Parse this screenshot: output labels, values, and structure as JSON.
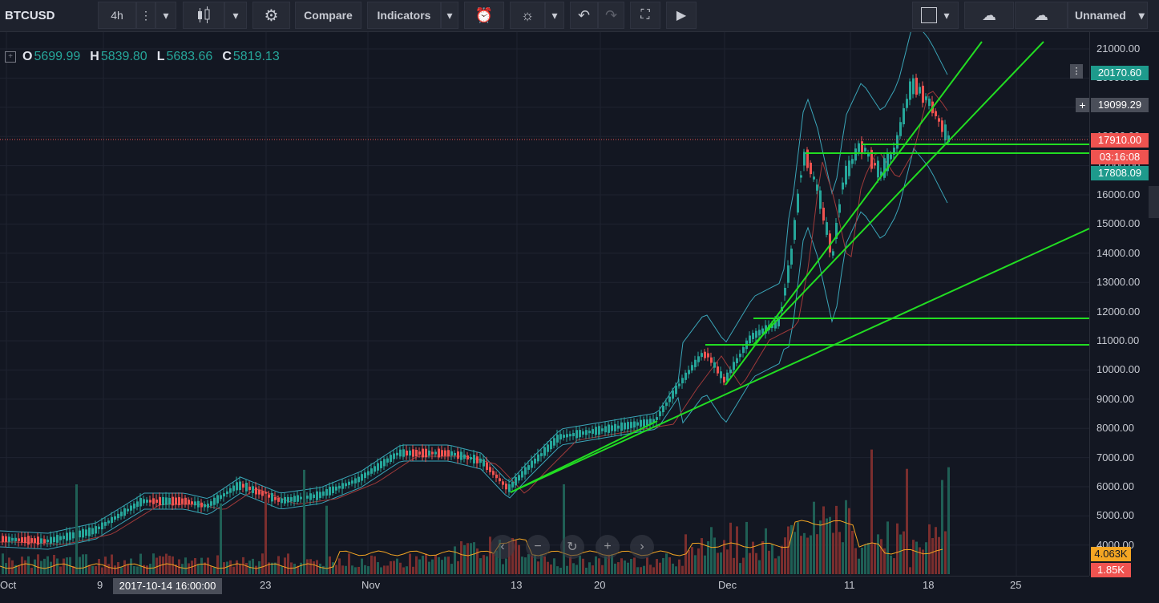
{
  "toolbar": {
    "symbol": "BTCUSD",
    "interval": "4h",
    "compare_label": "Compare",
    "indicators_label": "Indicators",
    "layout_name": "Unnamed"
  },
  "ohlc": {
    "o_label": "O",
    "o": "5699.99",
    "h_label": "H",
    "h": "5839.80",
    "l_label": "L",
    "l": "5683.66",
    "c_label": "C",
    "c": "5819.13"
  },
  "price_axis": [
    "21000.00",
    "20000.00",
    "19000.00",
    "18000.00",
    "17000.00",
    "16000.00",
    "15000.00",
    "14000.00",
    "13000.00",
    "12000.00",
    "11000.00",
    "10000.00",
    "9000.00",
    "8000.00",
    "7000.00",
    "6000.00",
    "5000.00",
    "4000.00"
  ],
  "price_tags": {
    "high": "20170.60",
    "crosshair": "19099.29",
    "last": "17910.00",
    "countdown": "03:16:08",
    "low": "17808.09",
    "volume_ma": "4.063K",
    "volume": "1.85K"
  },
  "time_axis": [
    "Oct",
    "9",
    "23",
    "Nov",
    "13",
    "20",
    "Dec",
    "11",
    "18",
    "25"
  ],
  "crosshair_time": "2017-10-14 16:00:00",
  "colors": {
    "background": "#131722",
    "up": "#26a69a",
    "down": "#ef5350",
    "trendline": "#22dd22",
    "bollinger": "#3aa5b8"
  }
}
